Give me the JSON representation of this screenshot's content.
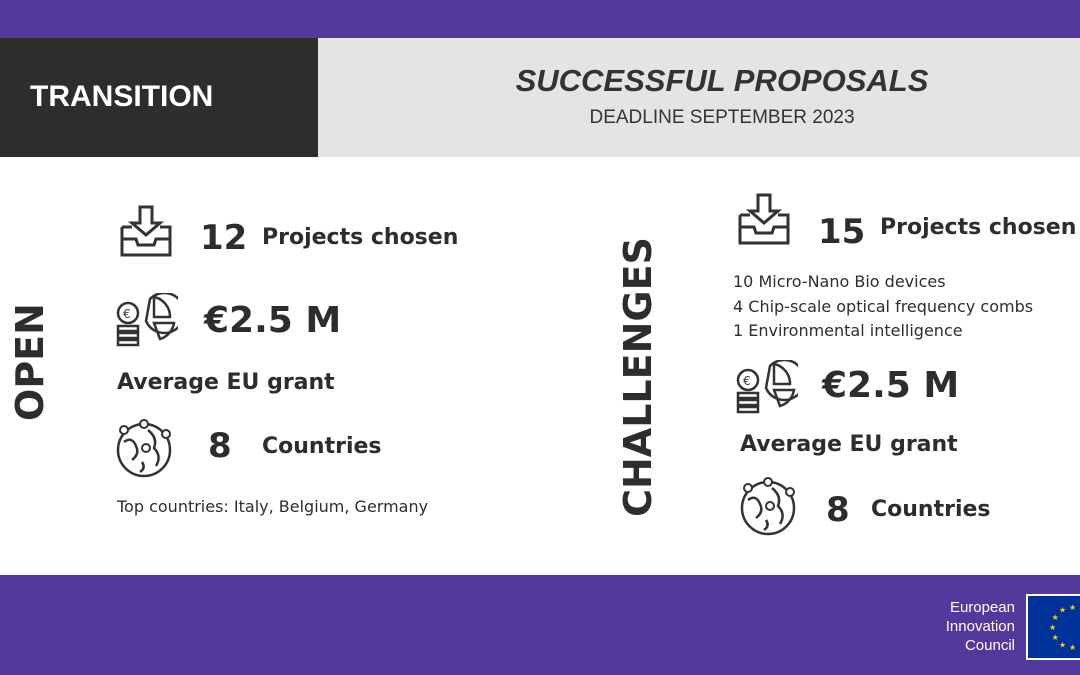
{
  "header": {
    "category": "TRANSITION",
    "title": "SUCCESSFUL PROPOSALS",
    "subtitle": "DEADLINE SEPTEMBER 2023"
  },
  "open": {
    "label": "OPEN",
    "projects_count": "12",
    "projects_label": "Projects chosen",
    "grant_value": "€2.5 M",
    "grant_label": "Average EU grant",
    "countries_count": "8",
    "countries_label": "Countries",
    "top_countries": "Top countries: Italy, Belgium, Germany"
  },
  "challenges": {
    "label": "CHALLENGES",
    "projects_count": "15",
    "projects_label": "Projects chosen",
    "breakdown": [
      "10 Micro-Nano Bio devices",
      "4 Chip-scale optical frequency combs",
      "1 Environmental intelligence"
    ],
    "grant_value": "€2.5 M",
    "grant_label": "Average EU grant",
    "countries_count": "8",
    "countries_label": "Countries"
  },
  "footer": {
    "logo_lines": [
      "European",
      "Innovation",
      "Council"
    ]
  },
  "colors": {
    "brand_purple": "#53399c",
    "dark": "#2d2d2d",
    "gray": "#e4e4e4",
    "eu_blue": "#003399",
    "eu_gold": "#ffcc00"
  },
  "icons": [
    "inbox-download-icon",
    "coin-pie-chart-icon",
    "globe-pins-icon"
  ]
}
